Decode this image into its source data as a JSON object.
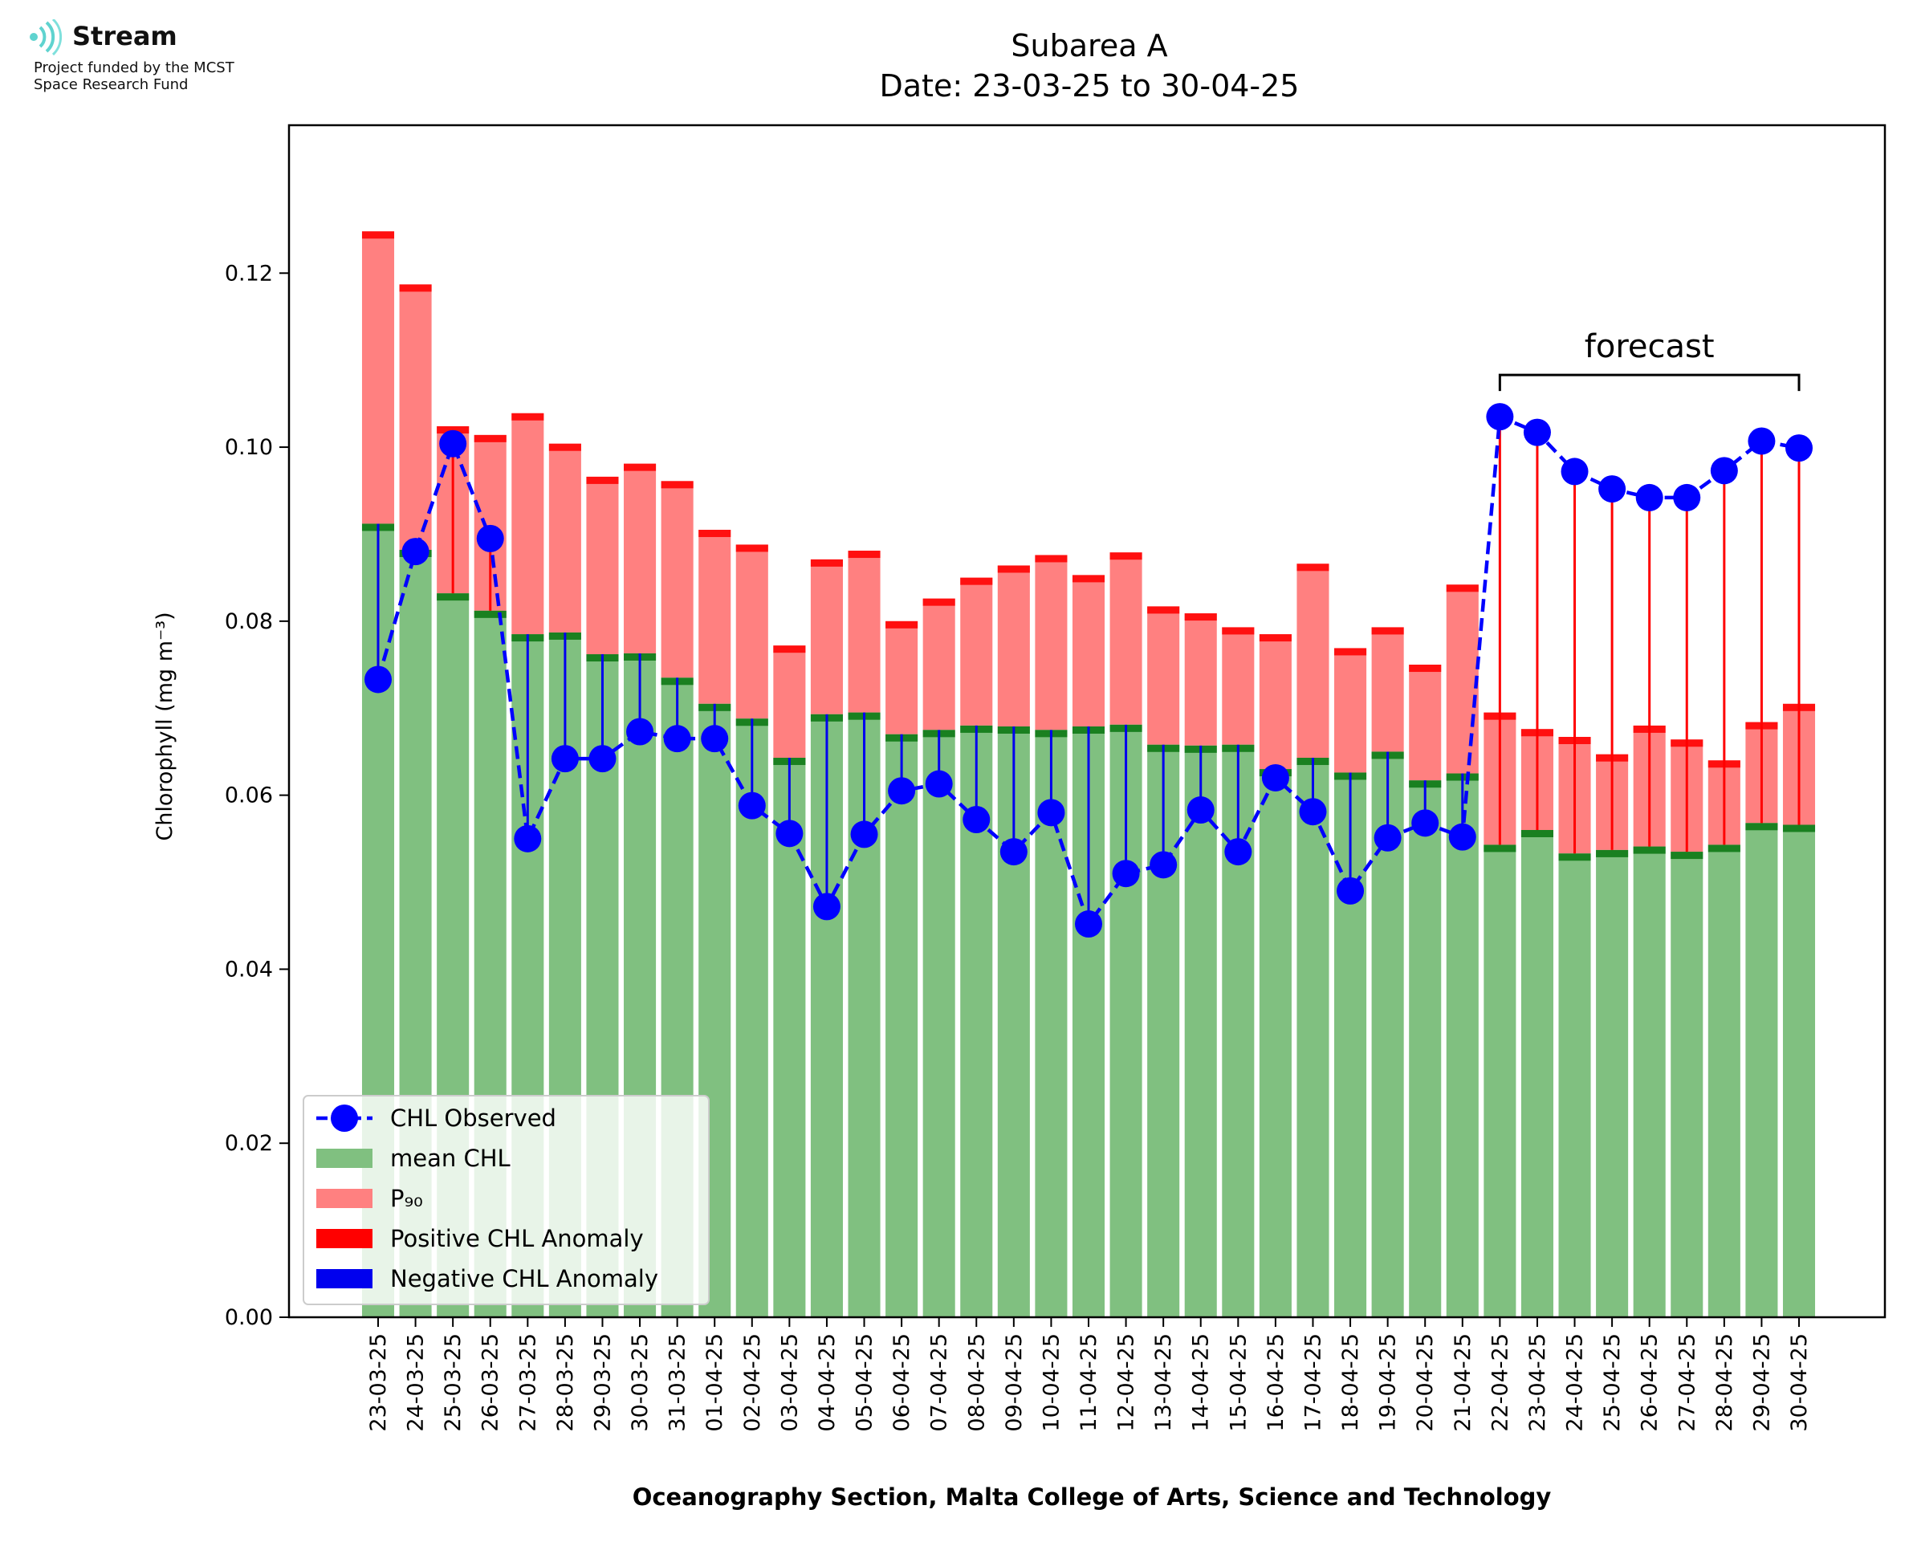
{
  "logo": {
    "name": "Stream",
    "funding_line1": "Project funded by the MCST",
    "funding_line2": "Space Research Fund"
  },
  "chart_data": {
    "type": "bar",
    "title": "Subarea A",
    "subtitle": "Date: 23-03-25 to 30-04-25",
    "xlabel": "Oceanography Section, Malta College of Arts, Science and Technology",
    "ylabel": "Chlorophyll (mg m⁻³)",
    "ylim": [
      0,
      0.137
    ],
    "yticks": [
      "0.00",
      "0.02",
      "0.04",
      "0.06",
      "0.08",
      "0.10",
      "0.12"
    ],
    "grid": false,
    "legend_placement": "lower-left",
    "annotation": "forecast",
    "forecast_start": "22-04-25",
    "forecast_end": "30-04-25",
    "colors": {
      "mean": "#80c080",
      "mean_cap": "#1a8020",
      "p90": "#ff8080",
      "p90_cap": "#ff1010",
      "positive": "#ff0000",
      "negative": "#0000ee",
      "observed": "#0000ff"
    },
    "categories": [
      "23-03-25",
      "24-03-25",
      "25-03-25",
      "26-03-25",
      "27-03-25",
      "28-03-25",
      "29-03-25",
      "30-03-25",
      "31-03-25",
      "01-04-25",
      "02-04-25",
      "03-04-25",
      "04-04-25",
      "05-04-25",
      "06-04-25",
      "07-04-25",
      "08-04-25",
      "09-04-25",
      "10-04-25",
      "11-04-25",
      "12-04-25",
      "13-04-25",
      "14-04-25",
      "15-04-25",
      "16-04-25",
      "17-04-25",
      "18-04-25",
      "19-04-25",
      "20-04-25",
      "21-04-25",
      "22-04-25",
      "23-04-25",
      "24-04-25",
      "25-04-25",
      "26-04-25",
      "27-04-25",
      "28-04-25",
      "29-04-25",
      "30-04-25"
    ],
    "series": [
      {
        "name": "CHL Observed",
        "values": [
          0.0733,
          0.088,
          0.1004,
          0.0895,
          0.055,
          0.0642,
          0.0642,
          0.0673,
          0.0665,
          0.0665,
          0.0588,
          0.0556,
          0.0472,
          0.0555,
          0.0605,
          0.0613,
          0.0572,
          0.0535,
          0.058,
          0.0452,
          0.051,
          0.052,
          0.0583,
          0.0535,
          0.062,
          0.0581,
          0.049,
          0.0551,
          0.0568,
          0.0552,
          0.1035,
          0.1017,
          0.0972,
          0.0952,
          0.0942,
          0.0942,
          0.0973,
          0.1007,
          0.0999
        ]
      },
      {
        "name": "mean CHL",
        "values": [
          0.0912,
          0.0882,
          0.0832,
          0.0812,
          0.0785,
          0.0787,
          0.0762,
          0.0763,
          0.0735,
          0.0705,
          0.0688,
          0.0643,
          0.0693,
          0.0695,
          0.067,
          0.0675,
          0.068,
          0.0679,
          0.0675,
          0.0679,
          0.0681,
          0.0658,
          0.0657,
          0.0658,
          0.063,
          0.0643,
          0.0626,
          0.065,
          0.0617,
          0.0625,
          0.0543,
          0.056,
          0.0533,
          0.0537,
          0.0541,
          0.0535,
          0.0543,
          0.0568,
          0.0566
        ]
      },
      {
        "name": "P₉₀",
        "values": [
          0.1248,
          0.1187,
          0.1024,
          0.1014,
          0.1039,
          0.1004,
          0.0966,
          0.0981,
          0.0961,
          0.0905,
          0.0888,
          0.0772,
          0.0871,
          0.0881,
          0.08,
          0.0826,
          0.085,
          0.0864,
          0.0876,
          0.0853,
          0.0879,
          0.0817,
          0.0809,
          0.0793,
          0.0785,
          0.0866,
          0.0769,
          0.0793,
          0.075,
          0.0842,
          0.0695,
          0.0676,
          0.0667,
          0.0647,
          0.068,
          0.0664,
          0.064,
          0.0684,
          0.0705
        ]
      }
    ],
    "legend": [
      "CHL Observed",
      "mean CHL",
      "P₉₀",
      "Positive CHL Anomaly",
      "Negative CHL Anomaly"
    ]
  }
}
